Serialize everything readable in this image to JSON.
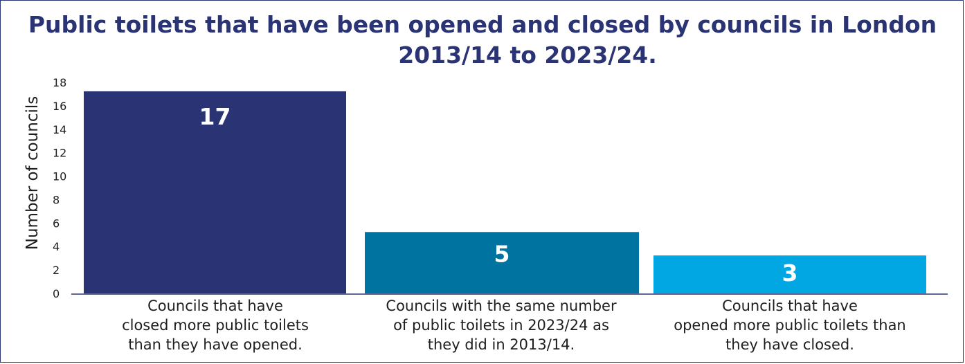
{
  "chart_data": {
    "type": "bar",
    "title": "Public toilets that have been opened and closed by councils in London 2013/14 to 2023/24.",
    "title_lines": [
      "Public toilets that have been opened and closed by councils in London",
      "2013/14 to 2023/24."
    ],
    "ylabel": "Number of councils",
    "xlabel": "",
    "ylim": [
      0,
      18
    ],
    "yticks": [
      0,
      2,
      4,
      6,
      8,
      10,
      12,
      14,
      16,
      18
    ],
    "grid": false,
    "categories": [
      "Councils that have\nclosed more public toilets\nthan they have opened.",
      "Councils with the same number\nof public toilets in 2023/24 as\nthey did in 2013/14.",
      "Councils that have\nopened more public toilets than\nthey have closed."
    ],
    "values": [
      17,
      5,
      3
    ],
    "value_labels": [
      "17",
      "5",
      "3"
    ],
    "colors": [
      "#2a3474",
      "#0073a1",
      "#00a7e3"
    ]
  }
}
